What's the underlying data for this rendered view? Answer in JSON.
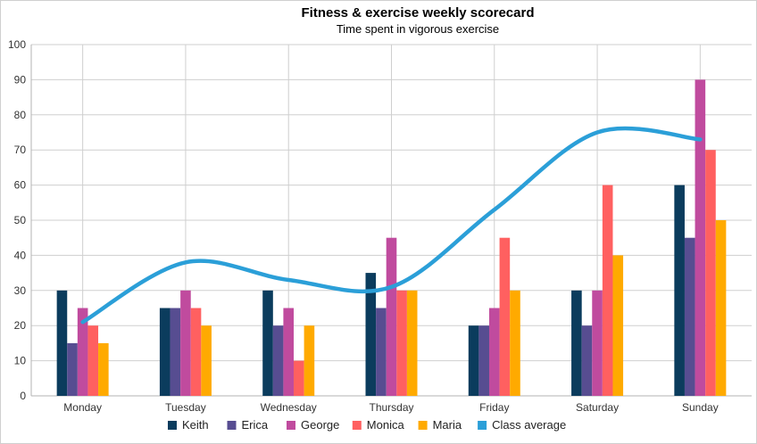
{
  "chart_data": {
    "type": "bar",
    "title": "Fitness & exercise weekly scorecard",
    "subtitle": "Time spent in vigorous exercise",
    "categories": [
      "Monday",
      "Tuesday",
      "Wednesday",
      "Thursday",
      "Friday",
      "Saturday",
      "Sunday"
    ],
    "ylim": [
      0,
      100
    ],
    "yticks": [
      0,
      10,
      20,
      30,
      40,
      50,
      60,
      70,
      80,
      90,
      100
    ],
    "grid": true,
    "legend_position": "bottom",
    "series": [
      {
        "name": "Keith",
        "type": "bar",
        "color": "#0b3c5d",
        "values": [
          30,
          25,
          30,
          35,
          20,
          30,
          60
        ]
      },
      {
        "name": "Erica",
        "type": "bar",
        "color": "#574d91",
        "values": [
          15,
          25,
          20,
          25,
          20,
          20,
          45
        ]
      },
      {
        "name": "George",
        "type": "bar",
        "color": "#c04b9e",
        "values": [
          25,
          30,
          25,
          45,
          25,
          30,
          90
        ]
      },
      {
        "name": "Monica",
        "type": "bar",
        "color": "#ff6060",
        "values": [
          20,
          25,
          10,
          30,
          45,
          60,
          70
        ]
      },
      {
        "name": "Maria",
        "type": "bar",
        "color": "#ffaa00",
        "values": [
          15,
          20,
          20,
          30,
          30,
          40,
          50
        ]
      },
      {
        "name": "Class average",
        "type": "line",
        "smooth": true,
        "color": "#2b9fd8",
        "values": [
          21,
          38,
          33,
          31,
          53,
          75,
          73
        ]
      }
    ]
  }
}
